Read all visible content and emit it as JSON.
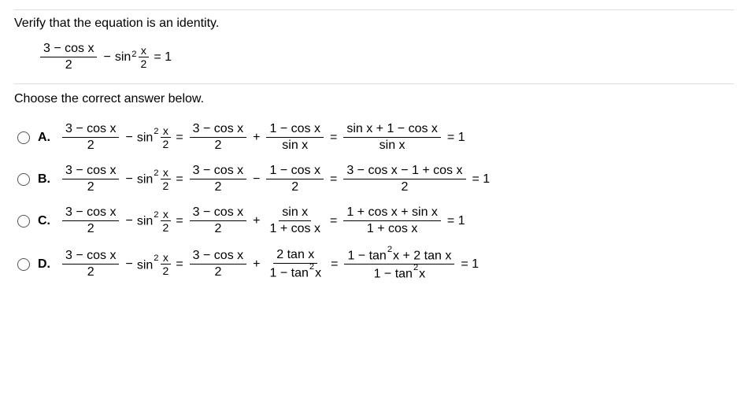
{
  "question": {
    "instruction": "Verify that the equation is an identity.",
    "prompt": "Choose the correct answer below.",
    "frac1_num": "3 − cos x",
    "frac1_den": "2",
    "minus": "−",
    "sin": "sin",
    "sq": "2",
    "x2_num": "x",
    "x2_den": "2",
    "eq1": "= 1"
  },
  "opt": {
    "A": {
      "label": "A.",
      "p1n": "3 − cos x",
      "p1d": "2",
      "p2n": "x",
      "p2d": "2",
      "p3n": "3 − cos x",
      "p3d": "2",
      "p4n": "1 − cos x",
      "p4d": "sin x",
      "p5n": "sin x + 1 − cos x",
      "p5d": "sin x",
      "plus": "+",
      "eq": "=",
      "eqend": "= 1"
    },
    "B": {
      "label": "B.",
      "p1n": "3 − cos x",
      "p1d": "2",
      "p2n": "x",
      "p2d": "2",
      "p3n": "3 − cos x",
      "p3d": "2",
      "p4n": "1 − cos x",
      "p4d": "2",
      "p5n": "3 − cos x − 1 + cos x",
      "p5d": "2",
      "minus2": "−",
      "eq": "=",
      "eqend": "= 1"
    },
    "C": {
      "label": "C.",
      "p1n": "3 − cos x",
      "p1d": "2",
      "p2n": "x",
      "p2d": "2",
      "p3n": "3 − cos x",
      "p3d": "2",
      "p4n": "sin x",
      "p4d": "1 + cos x",
      "p5n": "1 + cos x + sin x",
      "p5d": "1 + cos x",
      "plus": "+",
      "eq": "=",
      "eqend": "= 1"
    },
    "D": {
      "label": "D.",
      "p1n": "3 − cos x",
      "p1d": "2",
      "p2n": "x",
      "p2d": "2",
      "p3n": "3 − cos x",
      "p3d": "2",
      "p4n": "2 tan x",
      "p5n_a": "1 − tan",
      "p5n_b": "x + 2 tan x",
      "p4d_a": "1 − tan",
      "p4d_b": "x",
      "p5d_a": "1 − tan",
      "p5d_b": "x",
      "sq2": "2",
      "plus": "+",
      "eq": "=",
      "eqend": "= 1"
    }
  },
  "sym": {
    "sin": "sin",
    "minus": "−",
    "sq": "2"
  }
}
